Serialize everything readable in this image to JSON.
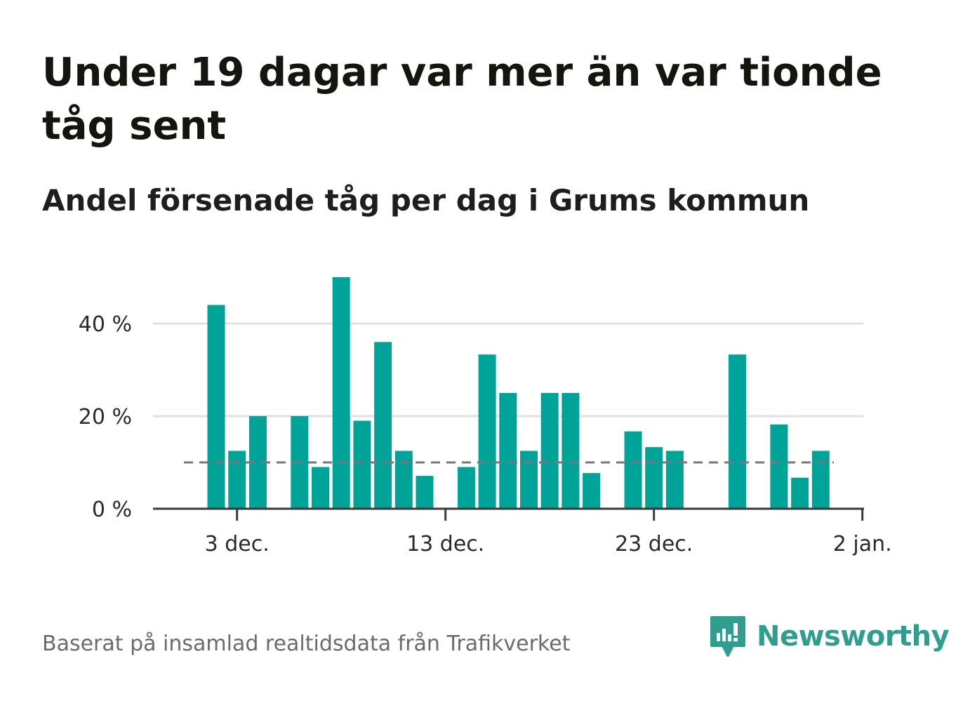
{
  "title": "Under 19 dagar var mer än var tionde tåg sent",
  "subtitle": "Andel försenade tåg per dag i Grums kommun",
  "source": "Baserat på insamlad realtidsdata från Trafikverket",
  "logo": {
    "text": "Newsworthy",
    "icon": "newsworthy-logo-icon"
  },
  "colors": {
    "bar": "#00a398",
    "reference": "#77767a",
    "grid": "#e0e0e0",
    "axis": "#3a3a3a",
    "brand": "#2f9e8f"
  },
  "chart_data": {
    "type": "bar",
    "x_start": "2023-11-30",
    "x_axis_ticks": [
      "3 dec.",
      "13 dec.",
      "23 dec.",
      "2 jan."
    ],
    "y_axis_ticks": [
      "0 %",
      "20 %",
      "40 %"
    ],
    "ylim": [
      0,
      53
    ],
    "unit": "%",
    "reference_line": 10,
    "reference_style": "dashed",
    "grid": true,
    "categories": [
      "2 dec.",
      "3 dec.",
      "4 dec.",
      "5 dec.",
      "6 dec.",
      "7 dec.",
      "8 dec.",
      "9 dec.",
      "10 dec.",
      "11 dec.",
      "12 dec.",
      "13 dec.",
      "14 dec.",
      "15 dec.",
      "16 dec.",
      "17 dec.",
      "18 dec.",
      "19 dec.",
      "20 dec.",
      "21 dec.",
      "22 dec.",
      "23 dec.",
      "24 dec.",
      "25 dec.",
      "26 dec.",
      "27 dec.",
      "28 dec.",
      "29 dec.",
      "30 dec.",
      "31 dec.",
      "1 jan."
    ],
    "values": [
      44,
      12.5,
      20,
      null,
      20,
      9,
      50,
      19,
      36,
      12.5,
      7.1,
      null,
      9,
      33.3,
      25,
      12.5,
      25,
      25,
      7.7,
      null,
      16.7,
      13.3,
      12.5,
      null,
      null,
      33.3,
      null,
      18.2,
      6.7,
      12.5,
      null
    ]
  }
}
